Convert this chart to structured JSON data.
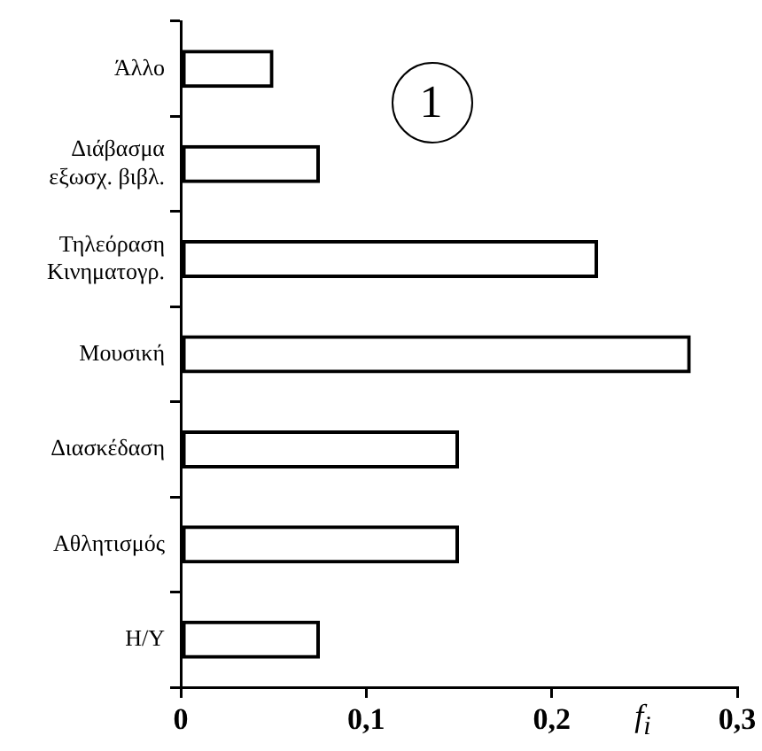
{
  "chart_data": {
    "type": "bar",
    "orientation": "horizontal",
    "xlabel": "f$_{i}$",
    "annotations": [
      "1"
    ],
    "categories": [
      "Άλλο",
      "Διάβασμα εξωσχ. βιβλ.",
      "Τηλεόραση Κινηματογρ.",
      "Μουσική",
      "Διασκέδαση",
      "Αθλητισμός",
      "Η/Υ"
    ],
    "values": [
      0.05,
      0.075,
      0.225,
      0.275,
      0.15,
      0.15,
      0.075
    ],
    "color": "#000000",
    "xlim": [
      0,
      0.3
    ],
    "xticks": [
      {
        "value": 0,
        "label": "0"
      },
      {
        "value": 0.1,
        "label": "0,1"
      },
      {
        "value": 0.2,
        "label": "0,2"
      },
      {
        "value": 0.3,
        "label": "0,3"
      }
    ],
    "grid": false,
    "legend": false
  }
}
